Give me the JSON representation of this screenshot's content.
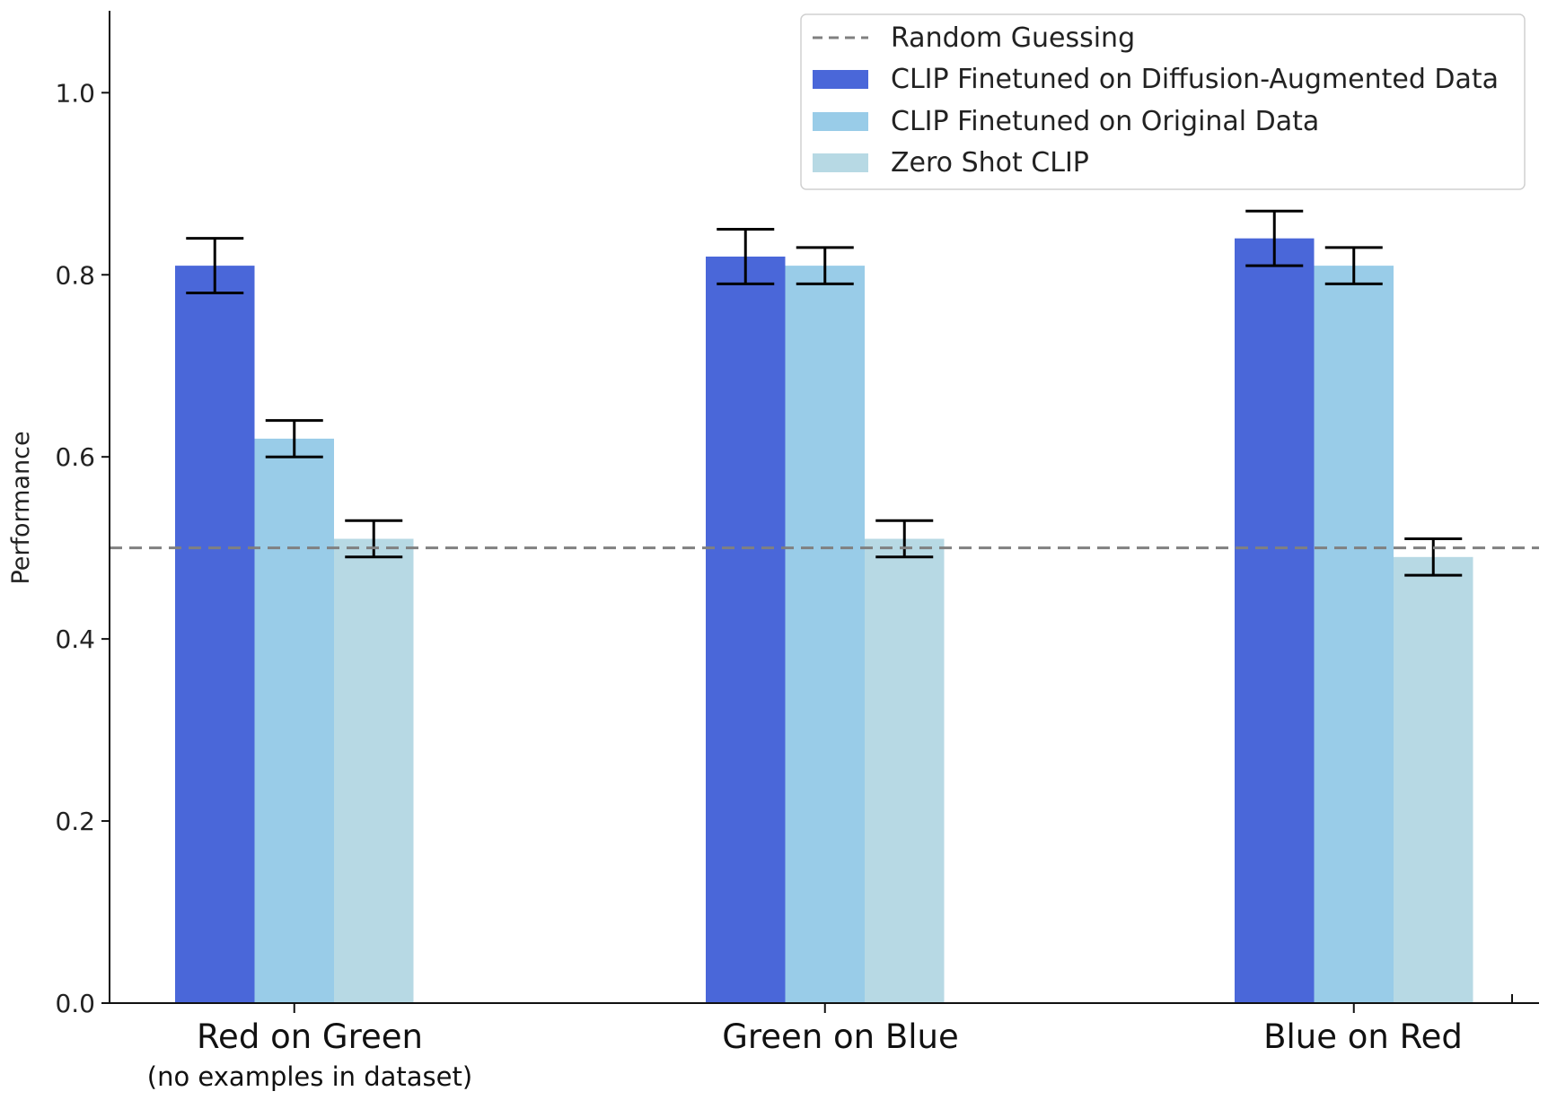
{
  "chart_data": {
    "type": "bar",
    "ylabel": "Performance",
    "ylim": [
      0.0,
      1.09
    ],
    "yticks": [
      "0.0",
      "0.2",
      "0.4",
      "0.6",
      "0.8",
      "1.0"
    ],
    "categories": [
      "Red on Green",
      "Green on Blue",
      "Blue on Red"
    ],
    "category_notes": [
      "(no examples in dataset)",
      "",
      ""
    ],
    "series": [
      {
        "name": "CLIP Finetuned on Diffusion-Augmented Data",
        "color": "#4a67d9",
        "values": [
          0.81,
          0.82,
          0.84
        ],
        "errors": [
          0.03,
          0.03,
          0.03
        ]
      },
      {
        "name": "CLIP Finetuned on Original Data",
        "color": "#99cce8",
        "values": [
          0.62,
          0.81,
          0.81
        ],
        "errors": [
          0.02,
          0.02,
          0.02
        ]
      },
      {
        "name": "Zero Shot CLIP",
        "color": "#b7d9e4",
        "values": [
          0.51,
          0.51,
          0.49
        ],
        "errors": [
          0.02,
          0.02,
          0.02
        ]
      }
    ],
    "reference_line": {
      "name": "Random Guessing",
      "value": 0.5,
      "style": "dashed",
      "color": "#808080"
    },
    "legend_position": "top-right",
    "grid": false
  }
}
